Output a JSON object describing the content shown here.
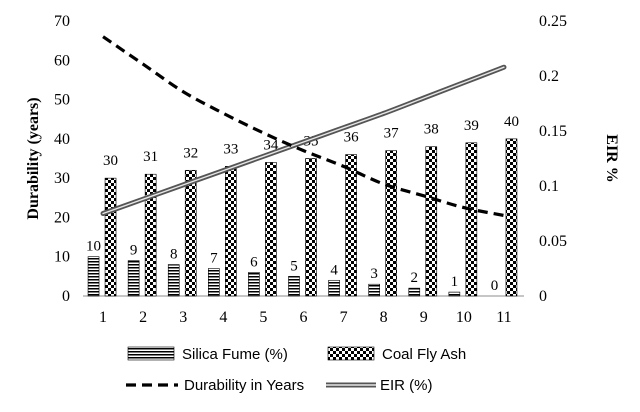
{
  "chart_data": {
    "type": "bar",
    "categories": [
      "1",
      "2",
      "3",
      "4",
      "5",
      "6",
      "7",
      "8",
      "9",
      "10",
      "11"
    ],
    "series": [
      {
        "name": "Silica Fume (%)",
        "kind": "bar",
        "axis": "left",
        "pattern": "horizontal-stripes",
        "values": [
          10,
          9,
          8,
          7,
          6,
          5,
          4,
          3,
          2,
          1,
          0
        ]
      },
      {
        "name": "Coal Fly Ash",
        "kind": "bar",
        "axis": "left",
        "pattern": "checkerboard",
        "values": [
          30,
          31,
          32,
          33,
          34,
          35,
          36,
          37,
          38,
          39,
          40
        ]
      },
      {
        "name": "Durability in Years",
        "kind": "line",
        "axis": "left",
        "style": "dashed",
        "values": [
          66,
          59,
          52,
          46.5,
          41.5,
          37,
          33,
          28.5,
          25.5,
          22.5,
          20.5
        ]
      },
      {
        "name": "EIR (%)",
        "kind": "line",
        "axis": "right",
        "style": "double-solid",
        "values": [
          0.075,
          0.088,
          0.101,
          0.114,
          0.127,
          0.14,
          0.153,
          0.166,
          0.18,
          0.194,
          0.208
        ]
      }
    ],
    "ylabel": "Durability (years)",
    "y2label": "EIR %",
    "ylim": [
      0,
      70
    ],
    "y2lim": [
      0,
      0.25
    ],
    "yticks": [
      "0",
      "10",
      "20",
      "30",
      "40",
      "50",
      "60",
      "70"
    ],
    "y2ticks": [
      "0",
      "0.05",
      "0.1",
      "0.15",
      "0.2",
      "0.25"
    ],
    "grid": false,
    "legend_position": "bottom"
  }
}
